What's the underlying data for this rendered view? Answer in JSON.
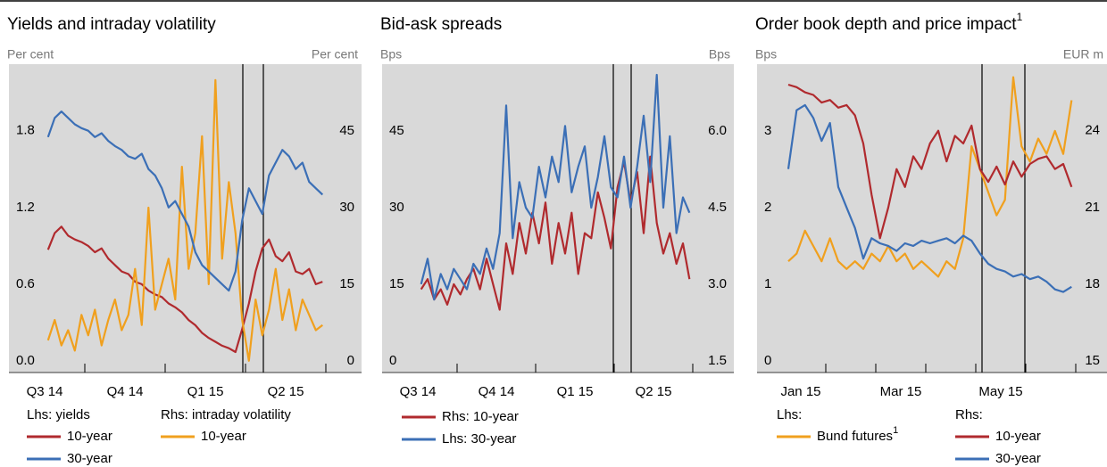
{
  "chart_data": [
    {
      "type": "line",
      "title": "Yields and intraday volatility",
      "ylabel": "Per cent",
      "y2label": "Per cent",
      "categories": [
        "Q3 14",
        "Q4 14",
        "Q1 15",
        "Q2 15"
      ],
      "ylim": [
        -0.09,
        2.32
      ],
      "yticks": [
        {
          "value": 0,
          "label": "0.0"
        },
        0.6,
        1.2,
        1.8
      ],
      "y2lim": [
        -2.3,
        58.1
      ],
      "y2ticks": [
        0,
        15,
        30,
        45
      ],
      "legend_titles": {
        "y": "Lhs: yields",
        "y2": "Rhs: intraday volatility"
      },
      "series": [
        {
          "name": "10-year",
          "color": "#b02a2e",
          "axis": "y",
          "values": [
            [
              null,
              null,
              null,
              null,
              null,
              null,
              0.87,
              1.0,
              1.05,
              0.98,
              0.95,
              0.93
            ],
            [
              0.9,
              0.85,
              0.88,
              0.8,
              0.75,
              0.7,
              0.68,
              0.62,
              0.6,
              0.55,
              0.52,
              0.5
            ],
            [
              0.45,
              0.42,
              0.38,
              0.32,
              0.28,
              0.22,
              0.18,
              0.15,
              0.12,
              0.1,
              0.07,
              0.25
            ],
            [
              0.45,
              0.7,
              0.88,
              0.95,
              0.82,
              0.78,
              0.85,
              0.7,
              0.68,
              0.72,
              0.6,
              0.62
            ]
          ]
        },
        {
          "name": "10-year",
          "color": "#f0a01e",
          "axis": "y2",
          "values": [
            [
              null,
              null,
              null,
              null,
              null,
              null,
              4,
              8,
              3,
              6,
              2,
              9
            ],
            [
              5,
              10,
              3,
              8,
              12,
              6,
              9,
              18,
              7,
              30,
              10,
              15
            ],
            [
              20,
              12,
              38,
              18,
              25,
              44,
              15,
              55,
              20,
              35,
              25,
              8
            ],
            [
              0,
              12,
              5,
              10,
              18,
              8,
              14,
              6,
              12,
              9,
              6,
              7
            ]
          ]
        },
        {
          "name": "30-year",
          "color": "#3b6fb6",
          "axis": "y",
          "values": [
            [
              null,
              null,
              null,
              null,
              null,
              null,
              1.75,
              1.9,
              1.95,
              1.9,
              1.85,
              1.82
            ],
            [
              1.8,
              1.75,
              1.78,
              1.72,
              1.68,
              1.65,
              1.6,
              1.58,
              1.62,
              1.5,
              1.45,
              1.35
            ],
            [
              1.2,
              1.25,
              1.15,
              1.05,
              0.85,
              0.75,
              0.7,
              0.65,
              0.6,
              0.55,
              0.7,
              1.1
            ],
            [
              1.35,
              1.25,
              1.15,
              1.45,
              1.55,
              1.65,
              1.6,
              1.5,
              1.55,
              1.4,
              1.35,
              1.3
            ]
          ]
        }
      ]
    },
    {
      "type": "line",
      "title": "Bid-ask spreads",
      "ylabel": "Bps",
      "y2label": "Bps",
      "categories": [
        "Q3 14",
        "Q4 14",
        "Q1 15",
        "Q2 15"
      ],
      "ylim": [
        -2.3,
        58.1
      ],
      "yticks": [
        0,
        15,
        30,
        45
      ],
      "y2lim": [
        1.27,
        7.31
      ],
      "y2ticks": [
        1.5,
        {
          "value": 3,
          "label": "3.0"
        },
        4.5,
        {
          "value": 6,
          "label": "6.0"
        }
      ],
      "series": [
        {
          "name": "Rhs: 10-year",
          "color": "#b02a2e",
          "axis": "y2",
          "values": [
            [
              null,
              null,
              null,
              null,
              null,
              null,
              2.9,
              3.1,
              2.7,
              2.9,
              2.6,
              3.0
            ],
            [
              2.8,
              3.1,
              3.3,
              2.9,
              3.5,
              3.0,
              2.5,
              3.8,
              3.2,
              4.2,
              3.6,
              4.4
            ],
            [
              3.8,
              4.6,
              3.4,
              4.2,
              3.6,
              4.4,
              3.2,
              4.0,
              3.9,
              4.8,
              4.3,
              3.7
            ],
            [
              4.9,
              5.4,
              4.6,
              5.2,
              4.0,
              5.5,
              4.2,
              3.6,
              4.0,
              3.4,
              3.8,
              3.1
            ]
          ]
        },
        {
          "name": "Lhs: 30-year",
          "color": "#3b6fb6",
          "axis": "y",
          "values": [
            [
              null,
              null,
              null,
              null,
              null,
              null,
              15,
              20,
              12,
              17,
              14,
              18
            ],
            [
              16,
              14,
              19,
              17,
              22,
              18,
              25,
              50,
              24,
              35,
              30,
              28
            ],
            [
              38,
              32,
              40,
              35,
              46,
              33,
              38,
              42,
              30,
              36,
              44,
              34
            ],
            [
              32,
              40,
              30,
              38,
              48,
              35,
              56,
              30,
              44,
              25,
              32,
              29
            ]
          ]
        }
      ]
    },
    {
      "type": "line",
      "title": "Order book depth and price impact",
      "title_note": "1",
      "ylabel": "Bps",
      "y2label": "EUR m",
      "categories": [
        "Jan 15",
        null,
        "Mar 15",
        null,
        "May 15",
        null
      ],
      "ylim": [
        -0.15,
        3.87
      ],
      "yticks": [
        0,
        1,
        2,
        3
      ],
      "y2lim": [
        14.55,
        26.6
      ],
      "y2ticks": [
        15,
        18,
        21,
        24
      ],
      "legend_titles": {
        "y": "Lhs:",
        "y2": "Rhs:"
      },
      "series": [
        {
          "name": "Bund futures",
          "note": "1",
          "color": "#f0a01e",
          "axis": "y",
          "values": [
            [
              null,
              1.3,
              1.4,
              1.7,
              1.5,
              1.3
            ],
            [
              1.6,
              1.3,
              1.2,
              1.3,
              1.2,
              1.4
            ],
            [
              1.3,
              1.5,
              1.3,
              1.4,
              1.2,
              1.3
            ],
            [
              1.2,
              1.1,
              1.3,
              1.2,
              1.6,
              2.8
            ],
            [
              2.5,
              2.2,
              1.9,
              2.1,
              3.7,
              2.8
            ],
            [
              2.6,
              2.9,
              2.7,
              3.0,
              2.7,
              3.4
            ]
          ]
        },
        {
          "name": "10-year",
          "color": "#b02a2e",
          "axis": "y2",
          "values": [
            [
              null,
              25.8,
              25.7,
              25.5,
              25.4,
              25.1
            ],
            [
              25.2,
              24.9,
              25.0,
              24.6,
              23.5,
              21.5
            ],
            [
              19.8,
              21.0,
              22.5,
              21.8,
              23.0,
              22.5
            ],
            [
              23.5,
              24.0,
              22.8,
              23.8,
              23.5,
              24.2
            ],
            [
              22.5,
              22.0,
              22.6,
              21.9,
              22.8,
              22.2
            ],
            [
              22.7,
              22.9,
              23.0,
              22.5,
              22.7,
              21.8
            ]
          ]
        },
        {
          "name": "30-year",
          "color": "#3b6fb6",
          "axis": "y2",
          "values": [
            [
              null,
              22.5,
              24.8,
              25.0,
              24.5,
              23.6
            ],
            [
              24.3,
              21.8,
              21.0,
              20.2,
              19.0,
              19.8
            ],
            [
              19.6,
              19.5,
              19.3,
              19.6,
              19.5,
              19.7
            ],
            [
              19.6,
              19.7,
              19.8,
              19.6,
              19.9,
              19.7
            ],
            [
              19.2,
              18.8,
              18.6,
              18.5,
              18.3,
              18.4
            ],
            [
              18.2,
              18.3,
              18.1,
              17.8,
              17.7,
              17.9
            ]
          ]
        }
      ]
    }
  ]
}
